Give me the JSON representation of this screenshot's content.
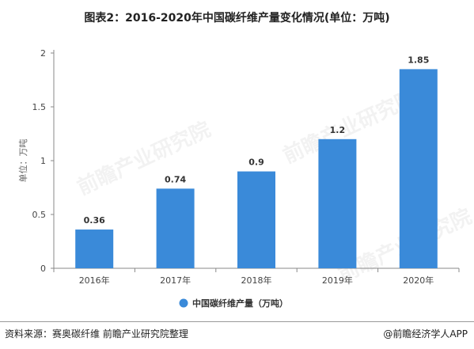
{
  "title": "图表2：2016-2020年中国碳纤维产量变化情况(单位：万吨)",
  "source": "资料来源：赛奥碳纤维 前瞻产业研究院整理",
  "credit": "@前瞻经济学人APP",
  "watermark": "前瞻产业研究院",
  "colors": {
    "bar": "#3a8ad9",
    "axis": "#888888",
    "grid": "#dddddd"
  },
  "chart_data": {
    "type": "bar",
    "categories": [
      "2016年",
      "2017年",
      "2018年",
      "2019年",
      "2020年"
    ],
    "series": [
      {
        "name": "中国碳纤维产量（万吨）",
        "values": [
          0.36,
          0.74,
          0.9,
          1.2,
          1.85
        ]
      }
    ],
    "data_labels": [
      "0.36",
      "0.74",
      "0.9",
      "1.2",
      "1.85"
    ],
    "ylabel": "单位：万吨",
    "ylim": [
      0,
      2
    ],
    "yticks": [
      0,
      0.5,
      1,
      1.5,
      2
    ],
    "ytick_labels": [
      "0",
      "0.5",
      "1",
      "1.5",
      "2"
    ],
    "grid": false,
    "legend": "bottom-center"
  }
}
